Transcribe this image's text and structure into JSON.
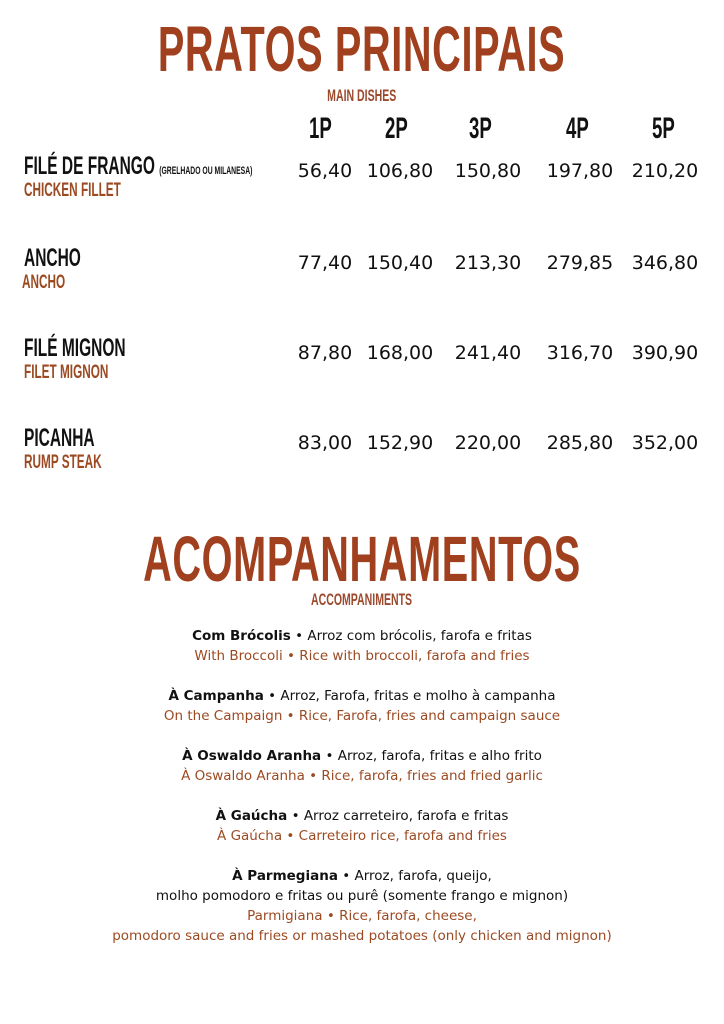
{
  "main": {
    "title": "PRATOS PRINCIPAIS",
    "subtitle": "MAIN DISHES",
    "columns": [
      "1P",
      "2P",
      "3P",
      "4P",
      "5P"
    ],
    "dishes": [
      {
        "name": "FILÉ DE FRANGO",
        "note": "(GRELHADO OU MILANESA)",
        "english": "CHICKEN FILLET",
        "prices": [
          "56,40",
          "106,80",
          "150,80",
          "197,80",
          "210,20"
        ]
      },
      {
        "name": "ANCHO",
        "note": "",
        "english": "ANCHO",
        "prices": [
          "77,40",
          "150,40",
          "213,30",
          "279,85",
          "346,80"
        ]
      },
      {
        "name": "FILÉ MIGNON",
        "note": "",
        "english": "FILET MIGNON",
        "prices": [
          "87,80",
          "168,00",
          "241,40",
          "316,70",
          "390,90"
        ]
      },
      {
        "name": "PICANHA",
        "note": "",
        "english": "RUMP STEAK",
        "prices": [
          "83,00",
          "152,90",
          "220,00",
          "285,80",
          "352,00"
        ]
      }
    ]
  },
  "sides": {
    "title": "ACOMPANHAMENTOS",
    "subtitle": "ACCOMPANIMENTS",
    "items": [
      {
        "pt_name": "Com Brócolis",
        "pt_desc": " • Arroz com brócolis, farofa e fritas",
        "en": "With Broccoli • Rice with broccoli, farofa and fries"
      },
      {
        "pt_name": "À Campanha",
        "pt_desc": " • Arroz, Farofa, fritas e molho à campanha",
        "en": "On the Campaign • Rice, Farofa, fries and campaign sauce"
      },
      {
        "pt_name": "À Oswaldo Aranha",
        "pt_desc": " • Arroz, farofa, fritas e alho frito",
        "en": "À Oswaldo Aranha • Rice, farofa, fries and fried garlic"
      },
      {
        "pt_name": "À Gaúcha",
        "pt_desc": " •  Arroz carreteiro, farofa e fritas",
        "en": "À Gaúcha • Carreteiro rice, farofa and fries"
      },
      {
        "pt_name": "À Parmegiana",
        "pt_desc": " • Arroz, farofa, queijo,",
        "pt_desc2": "molho pomodoro e fritas ou purê (somente frango e mignon)",
        "en": "Parmigiana • Rice, farofa, cheese,",
        "en2": "pomodoro sauce and fries or mashed potatoes (only chicken and mignon)"
      }
    ]
  },
  "colors": {
    "accent": "#a0401f",
    "english_text": "#9c4a22",
    "text": "#111111"
  }
}
